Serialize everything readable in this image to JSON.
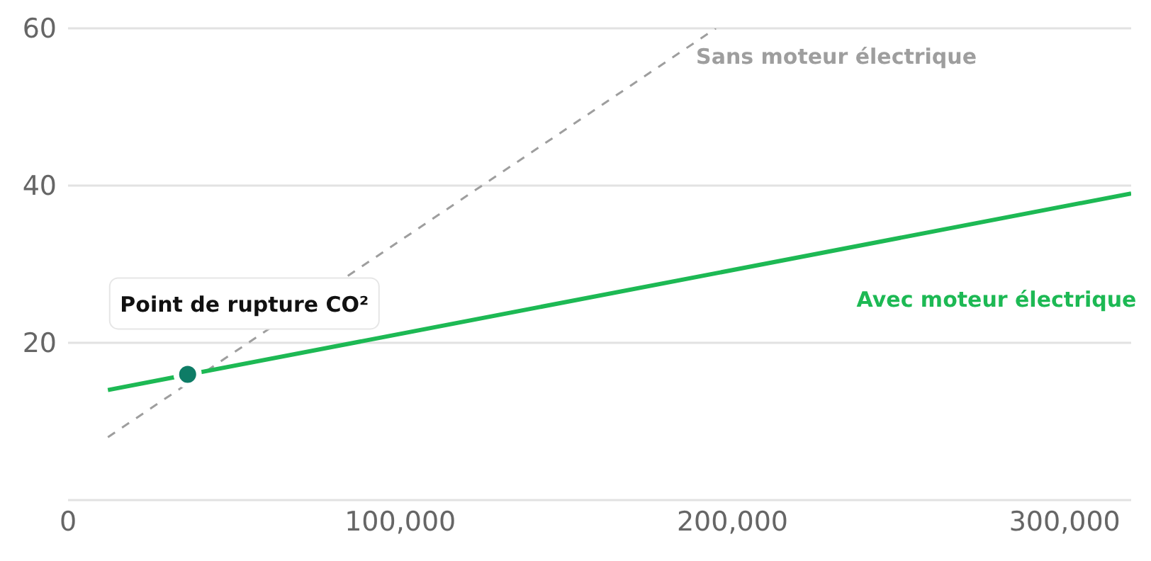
{
  "chart_data": {
    "type": "line",
    "xlim": [
      0,
      320000
    ],
    "xticks": [
      {
        "value": 0,
        "label": "0"
      },
      {
        "value": 100000,
        "label": "100,000"
      },
      {
        "value": 200000,
        "label": "200,000"
      },
      {
        "value": 300000,
        "label": "300,000"
      }
    ],
    "ylim": [
      0,
      60
    ],
    "yticks": [
      {
        "value": 0,
        "label": null
      },
      20,
      40,
      60
    ],
    "grid": "y",
    "series": [
      {
        "name": "Sans moteur électrique",
        "color": "#9e9e9e",
        "line_style": "dashed",
        "x": [
          12000,
          195000
        ],
        "values": [
          8,
          60
        ]
      },
      {
        "name": "Avec moteur électrique",
        "color": "#1db954",
        "line_style": "solid",
        "x": [
          12000,
          320000
        ],
        "values": [
          14,
          39
        ]
      },
      {
        "type": "scatter",
        "color": "#0e7c66",
        "x": [
          36000
        ],
        "values": [
          16
        ]
      }
    ],
    "annotations": [
      {
        "text": "Point de rupture CO²",
        "x": 36000,
        "y": 16
      }
    ]
  }
}
